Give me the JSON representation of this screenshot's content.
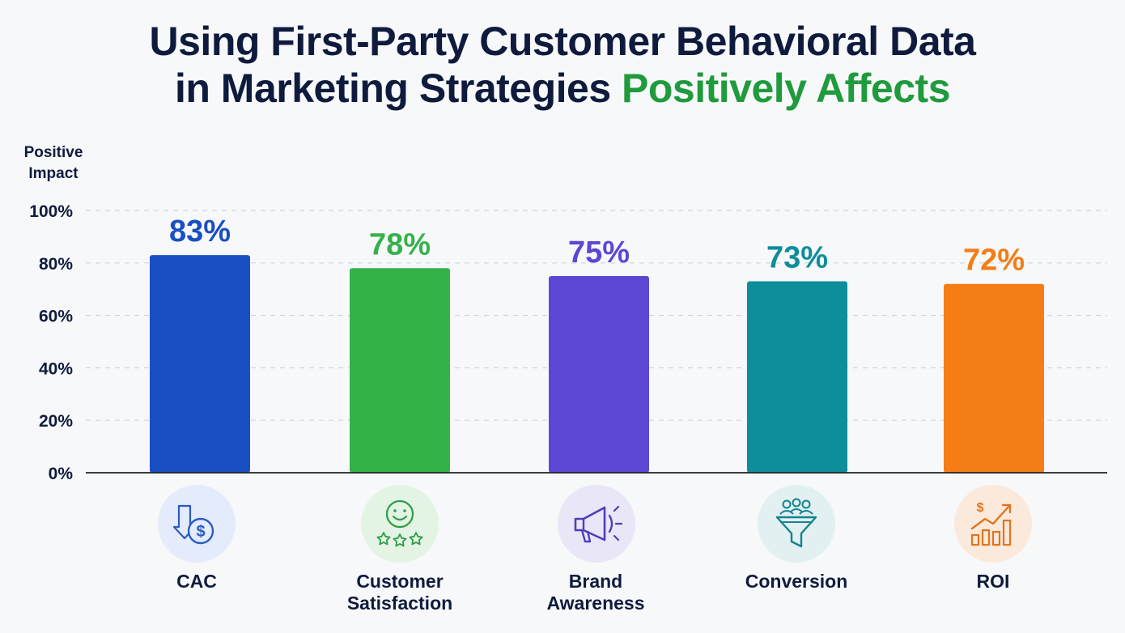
{
  "title": {
    "line1": "Using First-Party Customer Behavioral Data",
    "line2_main": "in Marketing Strategies ",
    "line2_accent": "Positively Affects"
  },
  "colors": {
    "title": "#0f1b3d",
    "accent": "#1f9a3c",
    "axis": "#222222",
    "grid": "#d0d4da"
  },
  "chart_data": {
    "type": "bar",
    "ylabel": "Positive Impact",
    "ylim": [
      0,
      100
    ],
    "yticks": [
      "0%",
      "20%",
      "40%",
      "60%",
      "80%",
      "100%"
    ],
    "grid": true,
    "categories": [
      "CAC",
      "Customer Satisfaction",
      "Brand Awareness",
      "Conversion",
      "ROI"
    ],
    "values": [
      83,
      78,
      75,
      73,
      72
    ],
    "value_labels": [
      "83%",
      "78%",
      "75%",
      "73%",
      "72%"
    ],
    "bar_colors": [
      "#1a4fc4",
      "#34b24a",
      "#5a48d4",
      "#0e8e9a",
      "#f47d16"
    ]
  },
  "categories_display": [
    {
      "line1": "CAC",
      "line2": "",
      "icon": "dollar-down-icon",
      "tint": "#e4ebfa",
      "stroke": "#2a5bc8"
    },
    {
      "line1": "Customer",
      "line2": "Satisfaction",
      "icon": "smiley-stars-icon",
      "tint": "#e3f3e4",
      "stroke": "#2e9e48"
    },
    {
      "line1": "Brand",
      "line2": "Awareness",
      "icon": "megaphone-icon",
      "tint": "#e9e6f8",
      "stroke": "#4d3fb8"
    },
    {
      "line1": "Conversion",
      "line2": "",
      "icon": "funnel-people-icon",
      "tint": "#e2f0f1",
      "stroke": "#13838e"
    },
    {
      "line1": "ROI",
      "line2": "",
      "icon": "growth-chart-icon",
      "tint": "#fbeadb",
      "stroke": "#e07420"
    }
  ]
}
